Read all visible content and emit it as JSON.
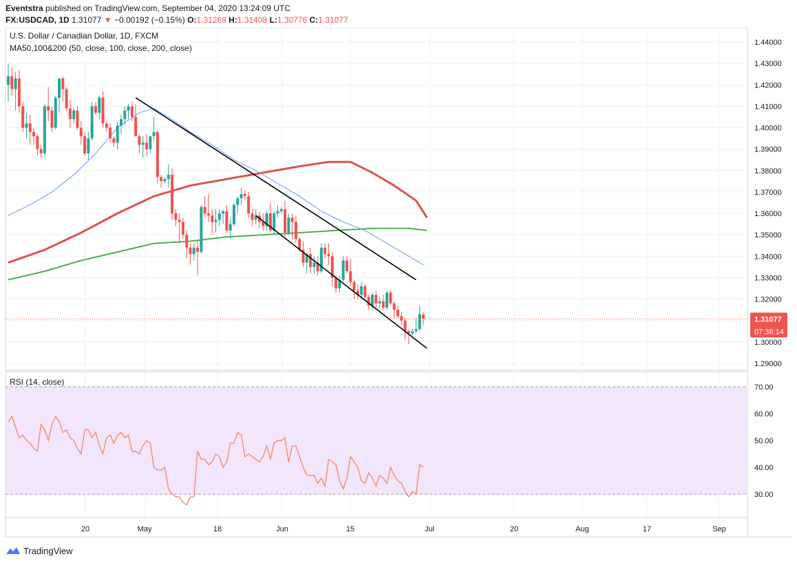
{
  "header": {
    "published_by": "Eventstra",
    "published_text": " published on TradingView.com, September 04, 2020 13:24:09 UTC",
    "symbol": "FX:USDCAD, 1D",
    "last": "1.31077",
    "change": "−0.00192 (−0.15%)",
    "open_label": "O:",
    "open": "1.31269",
    "high_label": "H:",
    "high": "1.31408",
    "low_label": "L:",
    "low": "1.30776",
    "close_label": "C:",
    "close": "1.31077"
  },
  "footer": {
    "brand": "TradingView"
  },
  "colors": {
    "up": "#26a69a",
    "down": "#ef5350",
    "ma50": "#5b9cf6",
    "ma100": "#d9534f",
    "ma200": "#4caf50",
    "rsi": "#f57c55",
    "rsi_band": "#f3e5fc",
    "channel": "#000000",
    "grid": "#eef0f3"
  },
  "chart_data": [
    {
      "type": "candlestick",
      "title": "U.S. Dollar / Canadian Dollar, 1D, FXCM",
      "indicator_label": "MA50,100&200 (50, close, 100, close, 200, close)",
      "ylim": [
        1.2855,
        1.444
      ],
      "y_ticks": [
        "1.44000",
        "1.43000",
        "1.42000",
        "1.41000",
        "1.40000",
        "1.39000",
        "1.38000",
        "1.37000",
        "1.36000",
        "1.35000",
        "1.34000",
        "1.33000",
        "1.32000",
        "1.31000",
        "1.30000",
        "1.29000"
      ],
      "x_ticks": [
        "20",
        "May",
        "18",
        "Jun",
        "15",
        "Jul",
        "20",
        "Aug",
        "17",
        "Sep"
      ],
      "last_price_label": "1.31077",
      "countdown_label": "07:36:14",
      "last_price": 1.31077,
      "candles": [
        [
          1.42,
          1.43,
          1.412,
          1.424
        ],
        [
          1.424,
          1.428,
          1.415,
          1.418
        ],
        [
          1.418,
          1.426,
          1.408,
          1.423
        ],
        [
          1.423,
          1.427,
          1.407,
          1.41
        ],
        [
          1.41,
          1.412,
          1.398,
          1.4
        ],
        [
          1.4,
          1.407,
          1.395,
          1.402
        ],
        [
          1.402,
          1.406,
          1.392,
          1.398
        ],
        [
          1.398,
          1.4,
          1.392,
          1.396
        ],
        [
          1.396,
          1.397,
          1.387,
          1.39
        ],
        [
          1.39,
          1.392,
          1.386,
          1.388
        ],
        [
          1.388,
          1.411,
          1.386,
          1.41
        ],
        [
          1.41,
          1.419,
          1.403,
          1.408
        ],
        [
          1.408,
          1.41,
          1.398,
          1.4
        ],
        [
          1.4,
          1.415,
          1.399,
          1.414
        ],
        [
          1.414,
          1.423,
          1.407,
          1.423
        ],
        [
          1.423,
          1.424,
          1.412,
          1.418
        ],
        [
          1.418,
          1.419,
          1.408,
          1.409
        ],
        [
          1.409,
          1.413,
          1.4,
          1.404
        ],
        [
          1.404,
          1.409,
          1.402,
          1.408
        ],
        [
          1.408,
          1.41,
          1.399,
          1.4
        ],
        [
          1.4,
          1.403,
          1.392,
          1.396
        ],
        [
          1.396,
          1.398,
          1.387,
          1.388
        ],
        [
          1.388,
          1.398,
          1.385,
          1.395
        ],
        [
          1.395,
          1.412,
          1.394,
          1.41
        ],
        [
          1.41,
          1.412,
          1.406,
          1.407
        ],
        [
          1.407,
          1.415,
          1.404,
          1.414
        ],
        [
          1.414,
          1.417,
          1.4,
          1.402
        ],
        [
          1.402,
          1.403,
          1.398,
          1.4
        ],
        [
          1.4,
          1.402,
          1.393,
          1.395
        ],
        [
          1.395,
          1.396,
          1.391,
          1.393
        ],
        [
          1.393,
          1.403,
          1.39,
          1.401
        ],
        [
          1.401,
          1.406,
          1.397,
          1.404
        ],
        [
          1.404,
          1.41,
          1.401,
          1.408
        ],
        [
          1.408,
          1.411,
          1.404,
          1.41
        ],
        [
          1.41,
          1.412,
          1.403,
          1.405
        ],
        [
          1.405,
          1.411,
          1.396,
          1.396
        ],
        [
          1.396,
          1.397,
          1.388,
          1.392
        ],
        [
          1.392,
          1.396,
          1.386,
          1.393
        ],
        [
          1.393,
          1.397,
          1.387,
          1.39
        ],
        [
          1.39,
          1.396,
          1.388,
          1.396
        ],
        [
          1.396,
          1.405,
          1.394,
          1.398
        ],
        [
          1.398,
          1.399,
          1.374,
          1.377
        ],
        [
          1.377,
          1.378,
          1.372,
          1.375
        ],
        [
          1.375,
          1.377,
          1.374,
          1.376
        ],
        [
          1.376,
          1.383,
          1.372,
          1.378
        ],
        [
          1.378,
          1.381,
          1.357,
          1.36
        ],
        [
          1.36,
          1.362,
          1.354,
          1.357
        ],
        [
          1.357,
          1.36,
          1.346,
          1.356
        ],
        [
          1.356,
          1.358,
          1.348,
          1.35
        ],
        [
          1.35,
          1.352,
          1.339,
          1.344
        ],
        [
          1.344,
          1.346,
          1.336,
          1.341
        ],
        [
          1.341,
          1.346,
          1.338,
          1.344
        ],
        [
          1.344,
          1.347,
          1.331,
          1.342
        ],
        [
          1.342,
          1.364,
          1.341,
          1.363
        ],
        [
          1.363,
          1.368,
          1.358,
          1.36
        ],
        [
          1.36,
          1.369,
          1.356,
          1.359
        ],
        [
          1.359,
          1.362,
          1.35,
          1.356
        ],
        [
          1.356,
          1.362,
          1.351,
          1.357
        ],
        [
          1.357,
          1.362,
          1.354,
          1.36
        ],
        [
          1.36,
          1.362,
          1.355,
          1.361
        ],
        [
          1.361,
          1.364,
          1.351,
          1.352
        ],
        [
          1.352,
          1.358,
          1.348,
          1.355
        ],
        [
          1.355,
          1.365,
          1.354,
          1.364
        ],
        [
          1.364,
          1.368,
          1.36,
          1.367
        ],
        [
          1.367,
          1.372,
          1.364,
          1.369
        ],
        [
          1.369,
          1.371,
          1.366,
          1.368
        ],
        [
          1.368,
          1.37,
          1.358,
          1.36
        ],
        [
          1.36,
          1.362,
          1.354,
          1.357
        ],
        [
          1.357,
          1.362,
          1.355,
          1.359
        ],
        [
          1.359,
          1.361,
          1.353,
          1.356
        ],
        [
          1.356,
          1.36,
          1.352,
          1.354
        ],
        [
          1.354,
          1.361,
          1.352,
          1.36
        ],
        [
          1.36,
          1.365,
          1.351,
          1.352
        ],
        [
          1.352,
          1.361,
          1.35,
          1.36
        ],
        [
          1.36,
          1.364,
          1.358,
          1.361
        ],
        [
          1.361,
          1.363,
          1.36,
          1.362
        ],
        [
          1.362,
          1.366,
          1.349,
          1.351
        ],
        [
          1.351,
          1.36,
          1.35,
          1.358
        ],
        [
          1.358,
          1.36,
          1.348,
          1.356
        ],
        [
          1.356,
          1.359,
          1.346,
          1.348
        ],
        [
          1.348,
          1.349,
          1.342,
          1.343
        ],
        [
          1.343,
          1.347,
          1.335,
          1.337
        ],
        [
          1.337,
          1.342,
          1.332,
          1.341
        ],
        [
          1.341,
          1.344,
          1.332,
          1.335
        ],
        [
          1.335,
          1.34,
          1.332,
          1.337
        ],
        [
          1.337,
          1.34,
          1.331,
          1.333
        ],
        [
          1.333,
          1.346,
          1.332,
          1.344
        ],
        [
          1.344,
          1.346,
          1.339,
          1.341
        ],
        [
          1.341,
          1.346,
          1.336,
          1.34
        ],
        [
          1.34,
          1.342,
          1.326,
          1.33
        ],
        [
          1.33,
          1.331,
          1.323,
          1.325
        ],
        [
          1.325,
          1.331,
          1.323,
          1.329
        ],
        [
          1.329,
          1.34,
          1.328,
          1.338
        ],
        [
          1.338,
          1.34,
          1.332,
          1.333
        ],
        [
          1.333,
          1.339,
          1.326,
          1.328
        ],
        [
          1.328,
          1.329,
          1.32,
          1.324
        ],
        [
          1.324,
          1.327,
          1.32,
          1.322
        ],
        [
          1.322,
          1.328,
          1.32,
          1.326
        ],
        [
          1.326,
          1.327,
          1.32,
          1.321
        ],
        [
          1.321,
          1.322,
          1.315,
          1.317
        ],
        [
          1.317,
          1.323,
          1.315,
          1.322
        ],
        [
          1.322,
          1.324,
          1.316,
          1.318
        ],
        [
          1.318,
          1.321,
          1.316,
          1.319
        ],
        [
          1.319,
          1.322,
          1.315,
          1.316
        ],
        [
          1.316,
          1.324,
          1.315,
          1.323
        ],
        [
          1.323,
          1.324,
          1.317,
          1.318
        ],
        [
          1.318,
          1.319,
          1.311,
          1.315
        ],
        [
          1.315,
          1.317,
          1.311,
          1.312
        ],
        [
          1.312,
          1.314,
          1.308,
          1.31
        ],
        [
          1.31,
          1.311,
          1.301,
          1.305
        ],
        [
          1.305,
          1.306,
          1.299,
          1.304
        ],
        [
          1.304,
          1.306,
          1.303,
          1.305
        ],
        [
          1.305,
          1.311,
          1.304,
          1.306
        ],
        [
          1.306,
          1.317,
          1.305,
          1.313
        ],
        [
          1.3127,
          1.3141,
          1.3078,
          1.3108
        ]
      ],
      "ma50": [
        [
          0,
          1.359
        ],
        [
          6,
          1.364
        ],
        [
          12,
          1.37
        ],
        [
          18,
          1.378
        ],
        [
          24,
          1.388
        ],
        [
          30,
          1.4
        ],
        [
          36,
          1.407
        ],
        [
          40,
          1.409
        ],
        [
          44,
          1.405
        ],
        [
          50,
          1.398
        ],
        [
          56,
          1.392
        ],
        [
          62,
          1.385
        ],
        [
          68,
          1.38
        ],
        [
          74,
          1.374
        ],
        [
          80,
          1.368
        ],
        [
          86,
          1.361
        ],
        [
          92,
          1.356
        ],
        [
          98,
          1.352
        ],
        [
          104,
          1.346
        ],
        [
          110,
          1.34
        ],
        [
          114,
          1.336
        ]
      ],
      "ma100": [
        [
          0,
          1.337
        ],
        [
          10,
          1.343
        ],
        [
          20,
          1.351
        ],
        [
          30,
          1.36
        ],
        [
          40,
          1.368
        ],
        [
          50,
          1.373
        ],
        [
          60,
          1.376
        ],
        [
          70,
          1.379
        ],
        [
          80,
          1.382
        ],
        [
          88,
          1.384
        ],
        [
          94,
          1.384
        ],
        [
          100,
          1.379
        ],
        [
          106,
          1.373
        ],
        [
          112,
          1.366
        ],
        [
          115,
          1.358
        ]
      ],
      "ma200": [
        [
          0,
          1.329
        ],
        [
          10,
          1.333
        ],
        [
          20,
          1.338
        ],
        [
          30,
          1.342
        ],
        [
          40,
          1.346
        ],
        [
          50,
          1.347
        ],
        [
          60,
          1.349
        ],
        [
          70,
          1.35
        ],
        [
          80,
          1.351
        ],
        [
          90,
          1.352
        ],
        [
          100,
          1.353
        ],
        [
          110,
          1.353
        ],
        [
          115,
          1.352
        ]
      ],
      "channel_upper": [
        [
          35,
          1.414
        ],
        [
          112,
          1.329
        ]
      ],
      "channel_lower": [
        [
          68,
          1.359
        ],
        [
          115,
          1.297
        ]
      ]
    },
    {
      "type": "line",
      "title": "RSI (14, close)",
      "ylim": [
        22,
        73
      ],
      "y_ticks": [
        "70.00",
        "60.00",
        "50.00",
        "40.00",
        "30.00"
      ],
      "band": [
        30,
        70
      ],
      "values": [
        57,
        59,
        55,
        51,
        52,
        50,
        49,
        47,
        46,
        56,
        54,
        50,
        56,
        59,
        57,
        53,
        54,
        51,
        50,
        47,
        45,
        54,
        54,
        51,
        53,
        48,
        45,
        51,
        52,
        49,
        52,
        53,
        51,
        52,
        46,
        46,
        45,
        48,
        50,
        49,
        40,
        39,
        39,
        40,
        32,
        30,
        29,
        29,
        27,
        26,
        29,
        29,
        46,
        43,
        43,
        41,
        42,
        45,
        44,
        40,
        42,
        49,
        49,
        53,
        52,
        44,
        45,
        44,
        43,
        42,
        44,
        48,
        43,
        49,
        50,
        50,
        51,
        42,
        48,
        48,
        44,
        40,
        37,
        37,
        37,
        34,
        36,
        33,
        43,
        42,
        41,
        35,
        32,
        36,
        44,
        42,
        40,
        35,
        34,
        38,
        36,
        33,
        37,
        36,
        34,
        40,
        37,
        35,
        34,
        31,
        29,
        31,
        30,
        41,
        40
      ]
    }
  ]
}
